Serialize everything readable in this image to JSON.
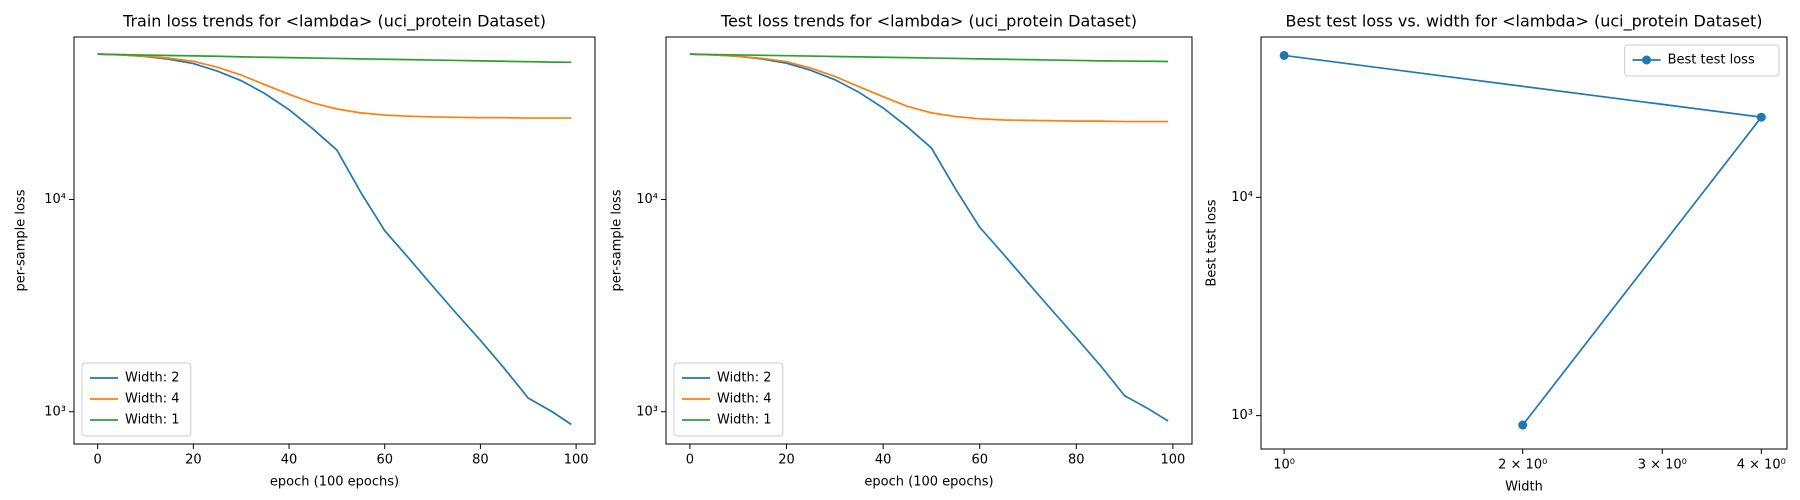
{
  "chart_data": [
    {
      "type": "line",
      "title": "Train loss trends for <lambda> (uci_protein Dataset)",
      "xlabel": "epoch (100 epochs)",
      "ylabel": "per-sample loss",
      "x": [
        0,
        5,
        10,
        15,
        20,
        25,
        30,
        35,
        40,
        45,
        50,
        55,
        60,
        65,
        70,
        75,
        80,
        85,
        90,
        95,
        99
      ],
      "series": [
        {
          "name": "Width: 2",
          "color": "#1f77b4",
          "values": [
            48400,
            48000,
            47200,
            45800,
            43700,
            40300,
            36300,
            31500,
            26500,
            21500,
            17100,
            10800,
            7130,
            5300,
            3910,
            2900,
            2170,
            1600,
            1160,
            1000,
            871
          ]
        },
        {
          "name": "Width: 4",
          "color": "#ff7f0e",
          "values": [
            48400,
            48000,
            47300,
            46300,
            44800,
            42000,
            38600,
            34700,
            31300,
            28500,
            26700,
            25600,
            25000,
            24700,
            24500,
            24400,
            24300,
            24300,
            24200,
            24200,
            24200
          ]
        },
        {
          "name": "Width: 1",
          "color": "#2ca02c",
          "values": [
            48400,
            48200,
            47900,
            47700,
            47500,
            47300,
            47000,
            46800,
            46600,
            46400,
            46200,
            46000,
            45800,
            45600,
            45400,
            45200,
            45000,
            44800,
            44600,
            44400,
            44300
          ]
        }
      ],
      "xscale": "linear",
      "yscale": "log",
      "xlim": [
        -4.95,
        103.95
      ],
      "ylim": [
        705,
        58300
      ],
      "xticks": [
        0,
        20,
        40,
        60,
        80,
        100
      ],
      "yticks": [
        {
          "value": 1000,
          "label": "10³"
        },
        {
          "value": 10000,
          "label": "10⁴"
        }
      ],
      "legend": "lower left",
      "grid": false
    },
    {
      "type": "line",
      "title": "Test loss trends for <lambda> (uci_protein Dataset)",
      "xlabel": "epoch (100 epochs)",
      "ylabel": "per-sample loss",
      "x": [
        0,
        5,
        10,
        15,
        20,
        25,
        30,
        35,
        40,
        45,
        50,
        55,
        60,
        65,
        70,
        75,
        80,
        85,
        90,
        95,
        99
      ],
      "series": [
        {
          "name": "Width: 2",
          "color": "#1f77b4",
          "values": [
            48400,
            48000,
            47300,
            45900,
            43900,
            40600,
            36700,
            32000,
            27000,
            22000,
            17500,
            11200,
            7400,
            5500,
            4050,
            3000,
            2230,
            1650,
            1190,
            1030,
            905
          ]
        },
        {
          "name": "Width: 4",
          "color": "#ff7f0e",
          "values": [
            48400,
            48000,
            47300,
            46200,
            44600,
            41600,
            38000,
            34000,
            30500,
            27500,
            25600,
            24600,
            24000,
            23700,
            23600,
            23500,
            23400,
            23400,
            23300,
            23300,
            23300
          ]
        },
        {
          "name": "Width: 1",
          "color": "#2ca02c",
          "values": [
            48400,
            48200,
            48000,
            47800,
            47600,
            47400,
            47200,
            47000,
            46800,
            46600,
            46400,
            46200,
            46000,
            45800,
            45600,
            45400,
            45200,
            45000,
            44900,
            44800,
            44700
          ]
        }
      ],
      "xscale": "linear",
      "yscale": "log",
      "xlim": [
        -4.95,
        103.95
      ],
      "ylim": [
        705,
        58300
      ],
      "xticks": [
        0,
        20,
        40,
        60,
        80,
        100
      ],
      "yticks": [
        {
          "value": 1000,
          "label": "10³"
        },
        {
          "value": 10000,
          "label": "10⁴"
        }
      ],
      "legend": "lower left",
      "grid": false
    },
    {
      "type": "line",
      "title": "Best test loss vs. width for <lambda> (uci_protein Dataset)",
      "xlabel": "Width",
      "ylabel": "Best test loss",
      "x": [
        2,
        4,
        1
      ],
      "series": [
        {
          "name": "Best test loss",
          "color": "#1f77b4",
          "marker": "o",
          "values": [
            905,
            23300,
            44700
          ]
        }
      ],
      "xscale": "log",
      "yscale": "log",
      "xlim": [
        0.935,
        4.31
      ],
      "ylim": [
        703,
        54300
      ],
      "xticks": [
        {
          "value": 1,
          "label": "10⁰"
        },
        {
          "value": 2,
          "label": "2 × 10⁰"
        },
        {
          "value": 3,
          "label": "3 × 10⁰"
        },
        {
          "value": 4,
          "label": "4 × 10⁰"
        }
      ],
      "yticks": [
        {
          "value": 1000,
          "label": "10³"
        },
        {
          "value": 10000,
          "label": "10⁴"
        }
      ],
      "legend": "upper right",
      "grid": false
    }
  ]
}
